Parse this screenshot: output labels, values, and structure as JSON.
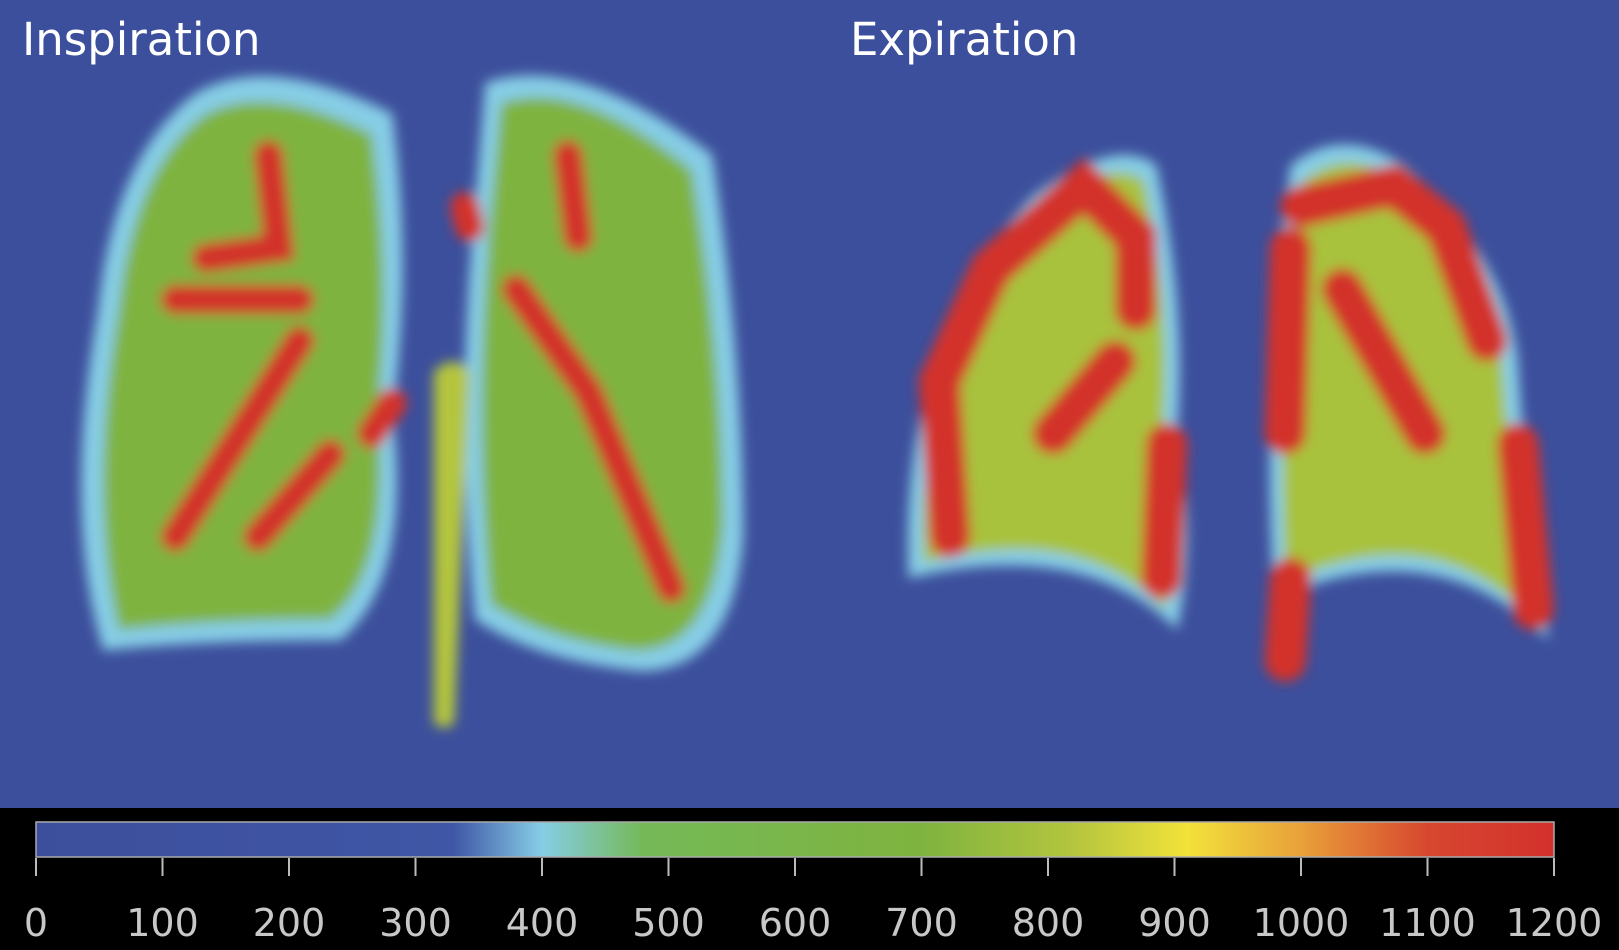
{
  "panels": [
    {
      "label": "Inspiration"
    },
    {
      "label": "Expiration"
    }
  ],
  "colorbar": {
    "range": [
      0,
      1200
    ],
    "ticks": [
      0,
      100,
      200,
      300,
      400,
      500,
      600,
      700,
      800,
      900,
      1000,
      1100,
      1200
    ],
    "stops": [
      {
        "value": 0,
        "color": "#3c4f9c"
      },
      {
        "value": 330,
        "color": "#3f56a6"
      },
      {
        "value": 400,
        "color": "#86cde6"
      },
      {
        "value": 480,
        "color": "#74b957"
      },
      {
        "value": 700,
        "color": "#7fb33f"
      },
      {
        "value": 820,
        "color": "#b4c53e"
      },
      {
        "value": 910,
        "color": "#f2e23a"
      },
      {
        "value": 1000,
        "color": "#e9a03a"
      },
      {
        "value": 1100,
        "color": "#d7472f"
      },
      {
        "value": 1200,
        "color": "#d3302c"
      }
    ]
  }
}
